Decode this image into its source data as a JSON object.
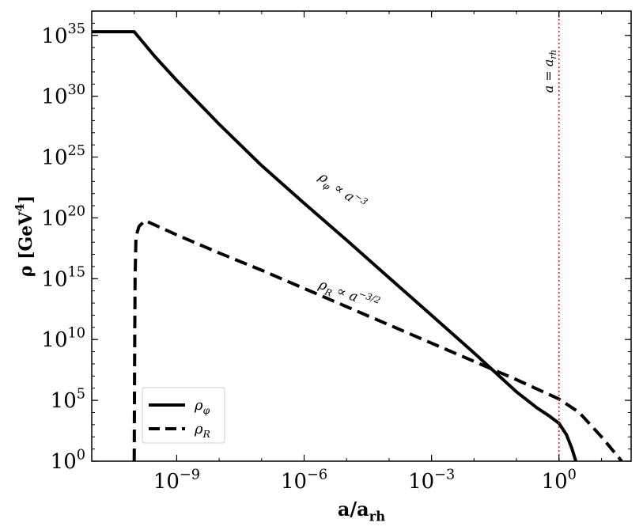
{
  "chart_data": {
    "type": "line",
    "title": "",
    "xlabel": "a/a_rh",
    "ylabel": "ρ [GeV⁴]",
    "xscale": "log",
    "yscale": "log",
    "xlim": [
      1e-11,
      50
    ],
    "ylim": [
      1,
      1e+37
    ],
    "x_ticks": [
      {
        "value": 1e-09,
        "base": "10",
        "exp": "−9"
      },
      {
        "value": 1e-06,
        "base": "10",
        "exp": "−6"
      },
      {
        "value": 0.001,
        "base": "10",
        "exp": "−3"
      },
      {
        "value": 1,
        "base": "10",
        "exp": "0"
      }
    ],
    "y_ticks": [
      {
        "value": 1,
        "base": "10",
        "exp": "0"
      },
      {
        "value": 100000.0,
        "base": "10",
        "exp": "5"
      },
      {
        "value": 10000000000.0,
        "base": "10",
        "exp": "10"
      },
      {
        "value": 1000000000000000.0,
        "base": "10",
        "exp": "15"
      },
      {
        "value": 1e+20,
        "base": "10",
        "exp": "20"
      },
      {
        "value": 1e+25,
        "base": "10",
        "exp": "25"
      },
      {
        "value": 1e+30,
        "base": "10",
        "exp": "30"
      },
      {
        "value": 1e+35,
        "base": "10",
        "exp": "35"
      }
    ],
    "series": [
      {
        "name": "ρ_φ",
        "style": "solid",
        "color": "#000000",
        "x": [
          1e-11,
          1e-10,
          3e-10,
          1e-09,
          1e-08,
          1e-07,
          1e-06,
          1e-05,
          0.0001,
          0.001,
          0.01,
          0.1,
          0.3,
          0.6,
          1.0,
          1.5,
          2.0,
          2.5
        ],
        "y": [
          2e+35,
          2e+35,
          2e+33,
          2e+31,
          5e+27,
          2e+24,
          1.6e+21,
          1.5e+18,
          1200000000000000.0,
          1000000000000.0,
          800000000.0,
          500000.0,
          25000.0,
          5000.0,
          1300.0,
          150,
          12,
          1
        ]
      },
      {
        "name": "ρ_R",
        "style": "dashed",
        "color": "#000000",
        "x": [
          1e-10,
          1.02e-10,
          1.05e-10,
          1.1e-10,
          1.3e-10,
          1.8e-10,
          1e-09,
          1e-08,
          1e-07,
          1e-06,
          1e-05,
          0.0001,
          0.001,
          0.01,
          0.1,
          1.0,
          3.0,
          10,
          30
        ],
        "y": [
          1,
          100000000.0,
          1000000000000000.0,
          3e+18,
          2e+19,
          6e+19,
          4e+18,
          1.3e+17,
          5000000000000000.0,
          160000000000000.0,
          5000000000000.0,
          160000000000.0,
          5000000000.0,
          160000000.0,
          5000000.0,
          130000.0,
          10000.0,
          100.0,
          1
        ]
      }
    ],
    "annotations": [
      {
        "text": "ρ_φ ∝ a^(−3)",
        "main": "ρ",
        "sub": "φ",
        "mid": " ∝ a",
        "sup": "−3",
        "x": 1e-06,
        "y": 4e+23,
        "angle": 36
      },
      {
        "text": "ρ_R ∝ a^(−3/2)",
        "main": "ρ",
        "sub": "R",
        "mid": " ∝ a",
        "sup": "−3/2",
        "x": 1e-06,
        "y": 300000000000000.0,
        "angle": 20
      }
    ],
    "vline": {
      "x": 1,
      "color": "#e31a1c",
      "style": "dotted",
      "label_main": "a = a",
      "label_sub": "rh"
    },
    "legend": {
      "position": "bottom-left",
      "entries": [
        {
          "main": "ρ",
          "sub": "φ",
          "style": "solid"
        },
        {
          "main": "ρ",
          "sub": "R",
          "style": "dashed"
        }
      ]
    },
    "xlabel_parts": {
      "main": "a/a",
      "sub": "rh"
    },
    "ylabel_parts": {
      "main": "ρ",
      "unit_open": " [GeV",
      "unit_sup": "4",
      "unit_close": "]"
    }
  }
}
